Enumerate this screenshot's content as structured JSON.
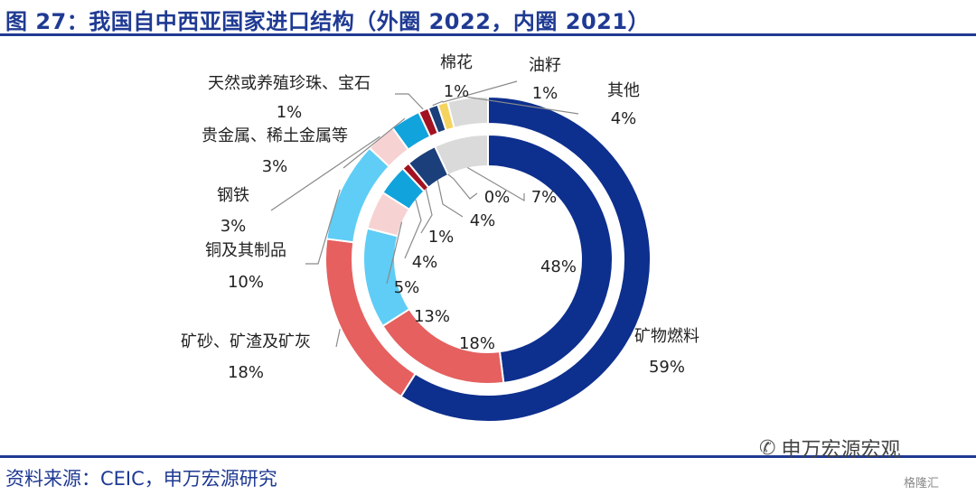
{
  "title": "图 27：我国自中西亚国家进口结构（外圈 2022，内圈 2021）",
  "source": "资料来源：CEIC，申万宏源研究",
  "watermark": {
    "icon": "wechat-icon",
    "text": "申万宏源宏观",
    "logo_text": "格隆汇"
  },
  "chart_data": {
    "type": "pie",
    "variant": "double-donut",
    "categories": [
      "矿物燃料",
      "矿砂、矿渣及矿灰",
      "铜及其制品",
      "钢铁",
      "贵金属、稀土金属等",
      "天然或养殖珍珠、宝石",
      "棉花",
      "油籽",
      "其他"
    ],
    "colors": [
      "#0d2f8e",
      "#e5605f",
      "#5fcdf5",
      "#f7d2d2",
      "#11a3dc",
      "#a31220",
      "#1b3f7a",
      "#f5d35f",
      "#dadada"
    ],
    "series": [
      {
        "ring": "outer",
        "year": "2022",
        "values": [
          59,
          18,
          10,
          3,
          3,
          1,
          1,
          1,
          4
        ],
        "labels": [
          "59%",
          "18%",
          "10%",
          "3%",
          "3%",
          "1%",
          "1%",
          "1%",
          "4%"
        ]
      },
      {
        "ring": "inner",
        "year": "2021",
        "values": [
          48,
          18,
          13,
          5,
          4,
          1,
          4,
          0,
          7
        ],
        "labels": [
          "48%",
          "18%",
          "13%",
          "5%",
          "4%",
          "1%",
          "4%",
          "0%",
          "7%"
        ]
      }
    ],
    "legend": "none"
  }
}
